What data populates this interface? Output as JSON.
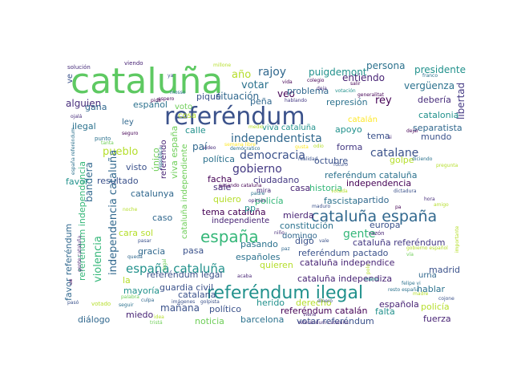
{
  "word_cloud": {
    "words": [
      {
        "text": "cataluña",
        "color": "#5ec962"
      },
      {
        "text": "referéndum",
        "color": "#3b528b"
      },
      {
        "text": "referéndum ilegal",
        "color": "#21918c"
      },
      {
        "text": "cataluña españa",
        "color": "#31688e"
      },
      {
        "text": "españa",
        "color": "#35b779"
      },
      {
        "text": "españa cataluña",
        "color": "#21918c"
      },
      {
        "text": "independentista",
        "color": "#31688e"
      },
      {
        "text": "gobierno",
        "color": "#443983"
      },
      {
        "text": "democracia",
        "color": "#3b528b"
      },
      {
        "text": "rajoy",
        "color": "#31688e"
      },
      {
        "text": "votar",
        "color": "#2c728e"
      },
      {
        "text": "catalane",
        "color": "#3b528b"
      },
      {
        "text": "gente",
        "color": "#35b779"
      },
      {
        "text": "puigdemont",
        "color": "#21918c"
      },
      {
        "text": "rey",
        "color": "#440154"
      },
      {
        "text": "año",
        "color": "#b5de2b"
      },
      {
        "text": "persona",
        "color": "#2c728e"
      },
      {
        "text": "presidente",
        "color": "#21918c"
      },
      {
        "text": "entiendo",
        "color": "#482475"
      },
      {
        "text": "vergüenza",
        "color": "#2c728e"
      },
      {
        "text": "libertad",
        "color": "#443983"
      },
      {
        "text": "debería",
        "color": "#472d7b"
      },
      {
        "text": "situación",
        "color": "#31688e"
      },
      {
        "text": "veo",
        "color": "#440154"
      },
      {
        "text": "problema",
        "color": "#31688e"
      },
      {
        "text": "represión",
        "color": "#2c728e"
      },
      {
        "text": "catalonia",
        "color": "#21918c"
      },
      {
        "text": "separatista",
        "color": "#31688e"
      },
      {
        "text": "piqué",
        "color": "#3b528b"
      },
      {
        "text": "peña",
        "color": "#31688e"
      },
      {
        "text": "alguien",
        "color": "#472d7b"
      },
      {
        "text": "gana",
        "color": "#31688e"
      },
      {
        "text": "español",
        "color": "#2c728e"
      },
      {
        "text": "voto",
        "color": "#6ece58"
      },
      {
        "text": "ilegal",
        "color": "#2c728e"
      },
      {
        "text": "ley",
        "color": "#31688e"
      },
      {
        "text": "cosa",
        "color": "#b5de2b"
      },
      {
        "text": "calle",
        "color": "#21918c"
      },
      {
        "text": "viva cataluña",
        "color": "#21918c"
      },
      {
        "text": "catalán",
        "color": "#fde725"
      },
      {
        "text": "apoyo",
        "color": "#21918c"
      },
      {
        "text": "tema",
        "color": "#3b528b"
      },
      {
        "text": "mundo",
        "color": "#3b528b"
      },
      {
        "text": "forma",
        "color": "#443983"
      },
      {
        "text": "golpe",
        "color": "#b5de2b"
      },
      {
        "text": "pueblo",
        "color": "#b5de2b"
      },
      {
        "text": "paí",
        "color": "#31688e"
      },
      {
        "text": "bandera",
        "color": "#31688e"
      },
      {
        "text": "único",
        "color": "#6ece58"
      },
      {
        "text": "política",
        "color": "#2c728e"
      },
      {
        "text": "octubre",
        "color": "#3b528b"
      },
      {
        "text": "referéndum cataluña",
        "color": "#2c728e"
      },
      {
        "text": "independencia",
        "color": "#440154"
      },
      {
        "text": "visto",
        "color": "#3b528b"
      },
      {
        "text": "favor",
        "color": "#21918c"
      },
      {
        "text": "resultado",
        "color": "#3b528b"
      },
      {
        "text": "catalunya",
        "color": "#31688e"
      },
      {
        "text": "viva españa",
        "color": "#6ece58"
      },
      {
        "text": "referendo",
        "color": "#482475"
      },
      {
        "text": "facha",
        "color": "#440154"
      },
      {
        "text": "sale",
        "color": "#472d7b"
      },
      {
        "text": "ciudadano",
        "color": "#443983"
      },
      {
        "text": "casa",
        "color": "#482475"
      },
      {
        "text": "historia",
        "color": "#35b779"
      },
      {
        "text": "partido",
        "color": "#31688e"
      },
      {
        "text": "tema cataluña",
        "color": "#440154"
      },
      {
        "text": "independiente",
        "color": "#482475"
      },
      {
        "text": "quiero",
        "color": "#b5de2b"
      },
      {
        "text": "pp",
        "color": "#21918c"
      },
      {
        "text": "policía",
        "color": "#35b779"
      },
      {
        "text": "fascista",
        "color": "#2c728e"
      },
      {
        "text": "mierda",
        "color": "#482475"
      },
      {
        "text": "constitución",
        "color": "#2c728e"
      },
      {
        "text": "europa",
        "color": "#3b528b"
      },
      {
        "text": "caso",
        "color": "#31688e"
      },
      {
        "text": "cara sol",
        "color": "#b5de2b"
      },
      {
        "text": "cataluña independiente",
        "color": "#6ece58"
      },
      {
        "text": "gracia",
        "color": "#31688e"
      },
      {
        "text": "pasa",
        "color": "#3b528b"
      },
      {
        "text": "pasando",
        "color": "#2c728e"
      },
      {
        "text": "digo",
        "color": "#3b528b"
      },
      {
        "text": "domingo",
        "color": "#31688e"
      },
      {
        "text": "cataluña referéndum",
        "color": "#443983"
      },
      {
        "text": "españoles",
        "color": "#2c728e"
      },
      {
        "text": "quieren",
        "color": "#b5de2b"
      },
      {
        "text": "referéndum pactado",
        "color": "#3b528b"
      },
      {
        "text": "cataluña independice",
        "color": "#482475"
      },
      {
        "text": "madrid",
        "color": "#3b528b"
      },
      {
        "text": "urna",
        "color": "#31688e"
      },
      {
        "text": "independencia cataluña",
        "color": "#31688e"
      },
      {
        "text": "referéndum independencia",
        "color": "#35b779"
      },
      {
        "text": "violencia",
        "color": "#35b779"
      },
      {
        "text": "favor referéndum",
        "color": "#31688e"
      },
      {
        "text": "la",
        "color": "#b5de2b"
      },
      {
        "text": "referéndum legal",
        "color": "#3b528b"
      },
      {
        "text": "mayoría",
        "color": "#21918c"
      },
      {
        "text": "guardia civil",
        "color": "#3b528b"
      },
      {
        "text": "catalana",
        "color": "#3b528b"
      },
      {
        "text": "mañana",
        "color": "#3b528b"
      },
      {
        "text": "político",
        "color": "#3b528b"
      },
      {
        "text": "cataluña independiza",
        "color": "#482475"
      },
      {
        "text": "hablar",
        "color": "#2c728e"
      },
      {
        "text": "derecho",
        "color": "#b5de2b"
      },
      {
        "text": "española",
        "color": "#482475"
      },
      {
        "text": "policía",
        "color": "#b5de2b"
      },
      {
        "text": "herido",
        "color": "#21918c"
      },
      {
        "text": "referéndum catalán",
        "color": "#440154"
      },
      {
        "text": "falta",
        "color": "#21918c"
      },
      {
        "text": "diálogo",
        "color": "#31688e"
      },
      {
        "text": "miedo",
        "color": "#482475"
      },
      {
        "text": "noticia",
        "color": "#6ece58"
      },
      {
        "text": "barcelona",
        "color": "#2c728e"
      },
      {
        "text": "votar referéndum",
        "color": "#3b528b"
      },
      {
        "text": "fuerza",
        "color": "#482475"
      },
      {
        "text": "ve",
        "color": "#3b528b"
      },
      {
        "text": "solución",
        "color": "#472d7b"
      },
      {
        "text": "viendo",
        "color": "#482475"
      },
      {
        "text": "millone",
        "color": "#b5de2b"
      },
      {
        "text": "ya",
        "color": "#3b528b"
      },
      {
        "text": "colegio",
        "color": "#440154"
      },
      {
        "text": "vida",
        "color": "#440154"
      },
      {
        "text": "deja",
        "color": "#472d7b"
      },
      {
        "text": "salir",
        "color": "#440154"
      },
      {
        "text": "votación",
        "color": "#21918c"
      },
      {
        "text": "franco",
        "color": "#2c728e"
      },
      {
        "text": "hablando",
        "color": "#443983"
      },
      {
        "text": "generalitat",
        "color": "#440154"
      },
      {
        "text": "mosso",
        "color": "#2c728e"
      },
      {
        "text": "espero",
        "color": "#440154"
      },
      {
        "text": "pide",
        "color": "#440154"
      },
      {
        "text": "ojalá",
        "color": "#472d7b"
      },
      {
        "text": "seguro",
        "color": "#440154"
      },
      {
        "text": "punto",
        "color": "#2c728e"
      },
      {
        "text": "tanta",
        "color": "#6ece58"
      },
      {
        "text": "medio",
        "color": "#b5de2b"
      },
      {
        "text": "semana libre",
        "color": "#fde725"
      },
      {
        "text": "demócratico",
        "color": "#2c728e"
      },
      {
        "text": "gusta",
        "color": "#fde725"
      },
      {
        "text": "realidad",
        "color": "#3b528b"
      },
      {
        "text": "odio",
        "color": "#b5de2b"
      },
      {
        "text": "futuro",
        "color": "#3b528b"
      },
      {
        "text": "dejar",
        "color": "#440154"
      },
      {
        "text": "si",
        "color": "#472d7b"
      },
      {
        "text": "video",
        "color": "#472d7b"
      },
      {
        "text": "españa referéndum",
        "color": "#2c728e"
      },
      {
        "text": "república",
        "color": "#2c728e"
      },
      {
        "text": "diciendo",
        "color": "#2c728e"
      },
      {
        "text": "pregunta",
        "color": "#b5de2b"
      },
      {
        "text": "votada",
        "color": "#b5de2b"
      },
      {
        "text": "dictadura",
        "color": "#3b528b"
      },
      {
        "text": "pasando cataluña",
        "color": "#440154"
      },
      {
        "text": "padre",
        "color": "#2c728e"
      },
      {
        "text": "opinión",
        "color": "#472d7b"
      },
      {
        "text": "hora",
        "color": "#472d7b"
      },
      {
        "text": "amigo",
        "color": "#b5de2b"
      },
      {
        "text": "pa",
        "color": "#440154"
      },
      {
        "text": "maduro",
        "color": "#3b528b"
      },
      {
        "text": "noche",
        "color": "#b5de2b"
      },
      {
        "text": "pasar",
        "color": "#3b528b"
      },
      {
        "text": "niño",
        "color": "#472d7b"
      },
      {
        "text": "vale",
        "color": "#3b528b"
      },
      {
        "text": "paz",
        "color": "#31688e"
      },
      {
        "text": "razón",
        "color": "#482475"
      },
      {
        "text": "gobierno español",
        "color": "#b5de2b"
      },
      {
        "text": "vía",
        "color": "#6ece58"
      },
      {
        "text": "importante",
        "color": "#b5de2b"
      },
      {
        "text": "gente cataluña",
        "color": "#482475"
      },
      {
        "text": "queda",
        "color": "#31688e"
      },
      {
        "text": "ue",
        "color": "#440154"
      },
      {
        "text": "palabra",
        "color": "#6ece58"
      },
      {
        "text": "culpa",
        "color": "#31688e"
      },
      {
        "text": "imágenes",
        "color": "#3b528b"
      },
      {
        "text": "acaba",
        "color": "#482475"
      },
      {
        "text": "resto españa",
        "color": "#2c728e"
      },
      {
        "text": "mano",
        "color": "#21918c"
      },
      {
        "text": "felipe vi",
        "color": "#2c728e"
      },
      {
        "text": "madre",
        "color": "#b5de2b"
      },
      {
        "text": "dinero",
        "color": "#3b528b"
      },
      {
        "text": "cojone",
        "color": "#3b528b"
      },
      {
        "text": "votado",
        "color": "#b5de2b"
      },
      {
        "text": "seguir",
        "color": "#2c728e"
      },
      {
        "text": "idea",
        "color": "#b5de2b"
      },
      {
        "text": "tristá",
        "color": "#6ece58"
      },
      {
        "text": "legal",
        "color": "#6ece58"
      },
      {
        "text": "golpista",
        "color": "#3b528b"
      },
      {
        "text": "referéndum cataluña",
        "color": "#472d7b"
      },
      {
        "text": "viene",
        "color": "#482475"
      },
      {
        "text": "pasó",
        "color": "#3b528b"
      },
      {
        "text": "polo",
        "color": "#b5de2b"
      },
      {
        "text": "mira",
        "color": "#472d7b"
      }
    ]
  }
}
